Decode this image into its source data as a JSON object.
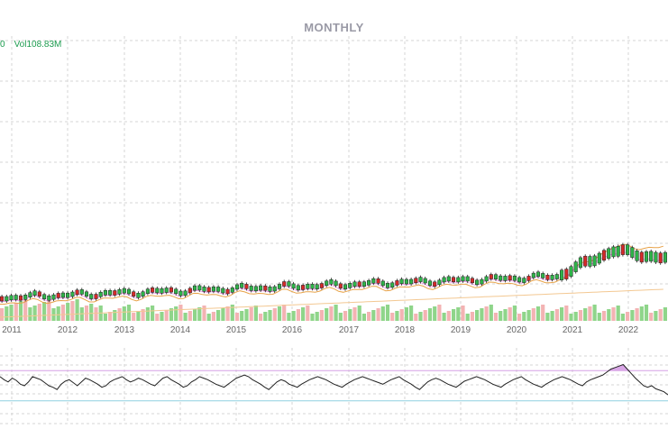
{
  "title": "MONTHLY",
  "volume_readout": {
    "leading": "0",
    "label": "Vol",
    "value": "108.83M"
  },
  "colors": {
    "up": "#2fb44a",
    "down": "#d62a2a",
    "up_volume": "#8fd58a",
    "down_volume": "#f3b3b3",
    "grid": "#d6d6d6",
    "ma_short": "#f2a6ef",
    "ma_long": "#e8a34a",
    "ma_200": "#f3c892",
    "rsi_line": "#222222",
    "rsi_fill": "#d9a6e6",
    "rsi_upper": "#d6a0e6",
    "rsi_lower": "#8fd0e0"
  },
  "chart_data": {
    "type": "candlestick",
    "x_tick_labels": [
      "2011",
      "2012",
      "2013",
      "2014",
      "2015",
      "2016",
      "2017",
      "2018",
      "2019",
      "2020",
      "2021",
      "2022"
    ],
    "rsi_levels": [
      70,
      30
    ],
    "rsi": [
      62,
      58,
      55,
      60,
      57,
      52,
      50,
      55,
      62,
      60,
      58,
      54,
      50,
      48,
      45,
      52,
      56,
      58,
      54,
      50,
      55,
      60,
      58,
      55,
      52,
      48,
      50,
      55,
      58,
      60,
      62,
      58,
      55,
      57,
      60,
      58,
      55,
      52,
      50,
      55,
      60,
      62,
      58,
      55,
      52,
      48,
      50,
      55,
      58,
      62,
      60,
      58,
      55,
      52,
      50,
      48,
      52,
      56,
      60,
      62,
      64,
      62,
      58,
      55,
      52,
      48,
      45,
      50,
      55,
      58,
      56,
      52,
      50,
      48,
      52,
      55,
      58,
      60,
      62,
      60,
      58,
      55,
      52,
      50,
      48,
      52,
      55,
      58,
      60,
      62,
      60,
      58,
      56,
      54,
      52,
      55,
      58,
      60,
      62,
      58,
      55,
      52,
      48,
      45,
      50,
      55,
      58,
      60,
      58,
      55,
      52,
      50,
      48,
      52,
      56,
      58,
      60,
      62,
      60,
      58,
      55,
      52,
      50,
      48,
      52,
      55,
      58,
      60,
      62,
      58,
      55,
      52,
      50,
      48,
      52,
      55,
      58,
      60,
      62,
      60,
      58,
      55,
      52,
      50,
      55,
      58,
      60,
      62,
      64,
      68,
      72,
      74,
      76,
      78,
      72,
      66,
      60,
      55,
      50,
      48,
      50,
      46,
      44,
      42,
      38
    ]
  }
}
